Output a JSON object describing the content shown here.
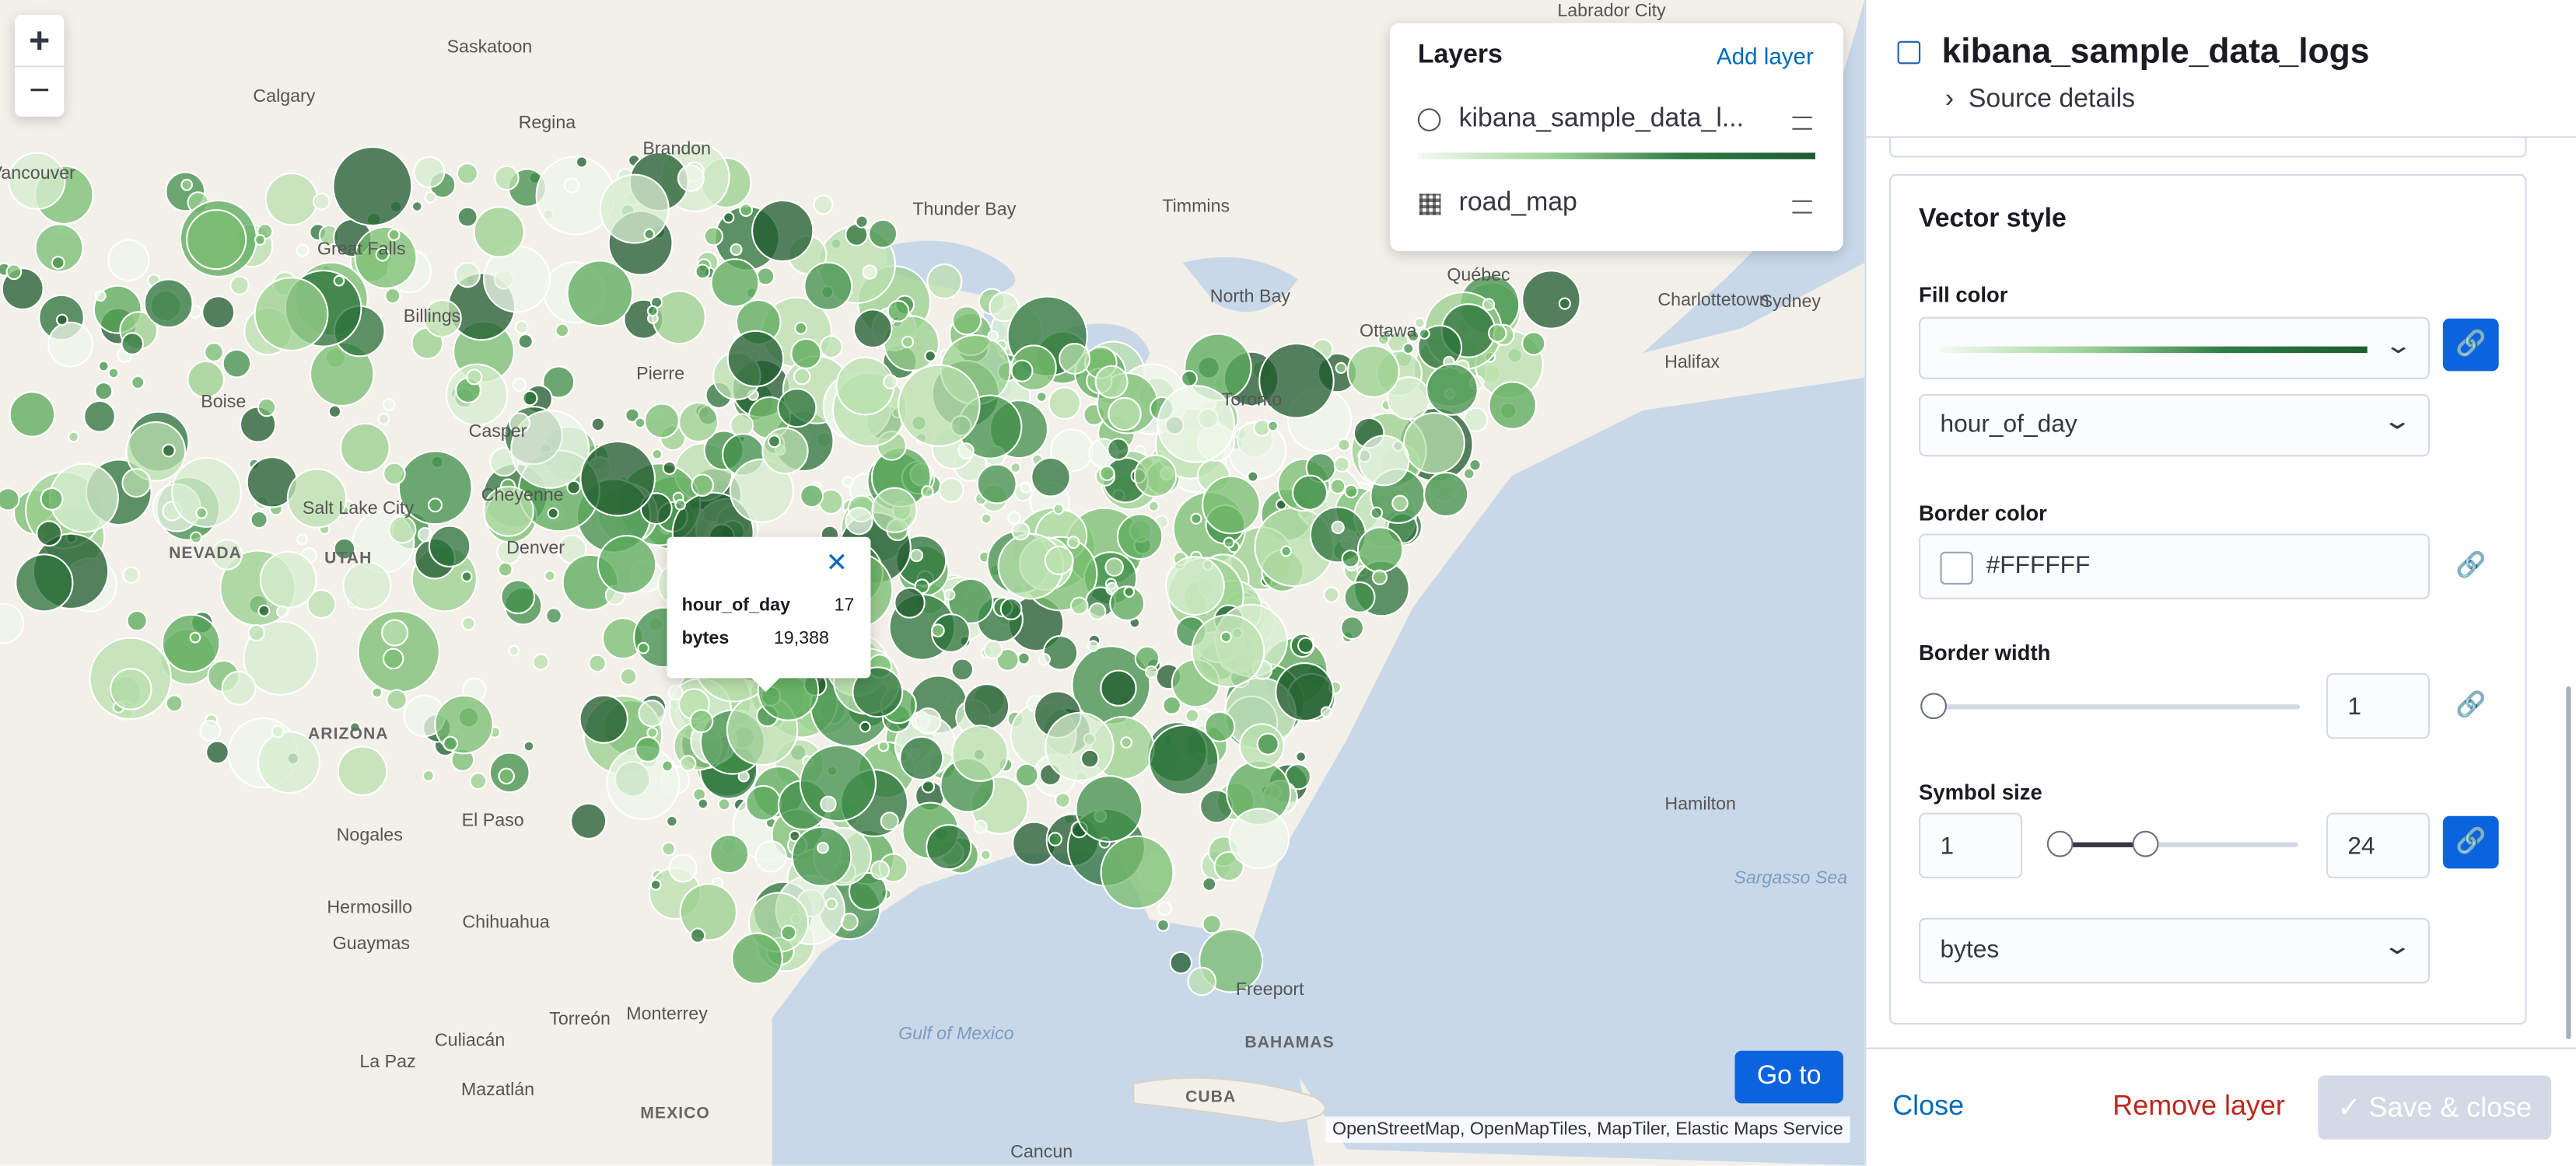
{
  "map": {
    "zoom_in": "+",
    "zoom_out": "−",
    "goto": "Go to",
    "attribution": "OpenStreetMap, OpenMapTiles, MapTiler, Elastic Maps Service",
    "labels": [
      "Labrador City",
      "Saskatoon",
      "Calgary",
      "Regina",
      "Brandon",
      "Thunder Bay",
      "Timmins",
      "Québec",
      "North Bay",
      "Ottawa",
      "Charlottetown",
      "Sydney",
      "Halifax",
      "Toronto",
      "Great Falls",
      "Billings",
      "Boise",
      "Casper",
      "Pierre",
      "Cheyenne",
      "Denver",
      "Salt Lake City",
      "NEVADA",
      "UTAH",
      "ARIZONA",
      "Nogales",
      "El Paso",
      "Hermosillo",
      "Guaymas",
      "Chihuahua",
      "Torreón",
      "Monterrey",
      "Culiacán",
      "La Paz",
      "Mazatlán",
      "MEXICO",
      "CUBA",
      "BAHAMAS",
      "Freeport",
      "Hamilton",
      "Cancun",
      "Gulf of Mexico",
      "Sargasso Sea",
      "Vancouver"
    ]
  },
  "layers_panel": {
    "title": "Layers",
    "add": "Add layer",
    "layers": [
      {
        "name": "kibana_sample_data_l..."
      },
      {
        "name": "road_map"
      }
    ]
  },
  "tooltip": {
    "rows": [
      [
        "hour_of_day",
        "17"
      ],
      [
        "bytes",
        "19,388"
      ]
    ]
  },
  "editor": {
    "title": "kibana_sample_data_logs",
    "source_details": "Source details",
    "section": "Vector style",
    "fill_color": {
      "label": "Fill color",
      "field": "hour_of_day"
    },
    "border_color": {
      "label": "Border color",
      "value": "#FFFFFF"
    },
    "border_width": {
      "label": "Border width",
      "value": "1"
    },
    "symbol_size": {
      "label": "Symbol size",
      "min": "1",
      "max": "24",
      "field": "bytes"
    }
  },
  "footer": {
    "close": "Close",
    "remove": "Remove layer",
    "save": "Save & close"
  }
}
